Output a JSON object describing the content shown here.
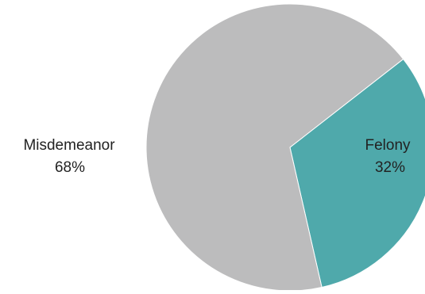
{
  "chart_data": {
    "type": "pie",
    "title": "",
    "slices": [
      {
        "label": "Felony",
        "value": 32,
        "value_label": "32%",
        "color": "#4fa9ab"
      },
      {
        "label": "Misdemeanor",
        "value": 68,
        "value_label": "68%",
        "color": "#bcbcbd"
      }
    ],
    "legend": "none",
    "labels": "category and percent, next to slices"
  }
}
